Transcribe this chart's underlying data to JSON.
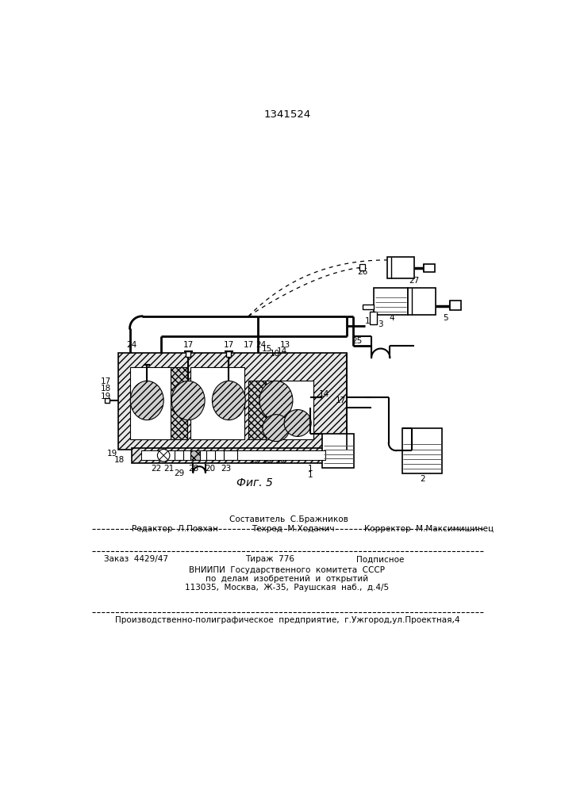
{
  "patent_number": "1341524",
  "bg_color": "#ffffff",
  "line_color": "#000000",
  "footer": {
    "composer": "Составитель  С.Бражников",
    "editor": "Редактор  Л.Повхан",
    "tech": "Техред  М.Ходанич",
    "corrector": "Корректор  М.Максимишинец",
    "order": "Заказ  4429/47",
    "circulation": "Тираж  776",
    "subscription": "Подписное",
    "org1": "ВНИИПИ  Государственного  комитета  СССР",
    "org2": "по  делам  изобретений  и  открытий",
    "address": "113035,  Москва,  Ж-35,  Раушская  наб.,  д.4/5",
    "production": "Производственно-полиграфическое  предприятие,  г.Ужгород,ул.Проектная,4"
  }
}
